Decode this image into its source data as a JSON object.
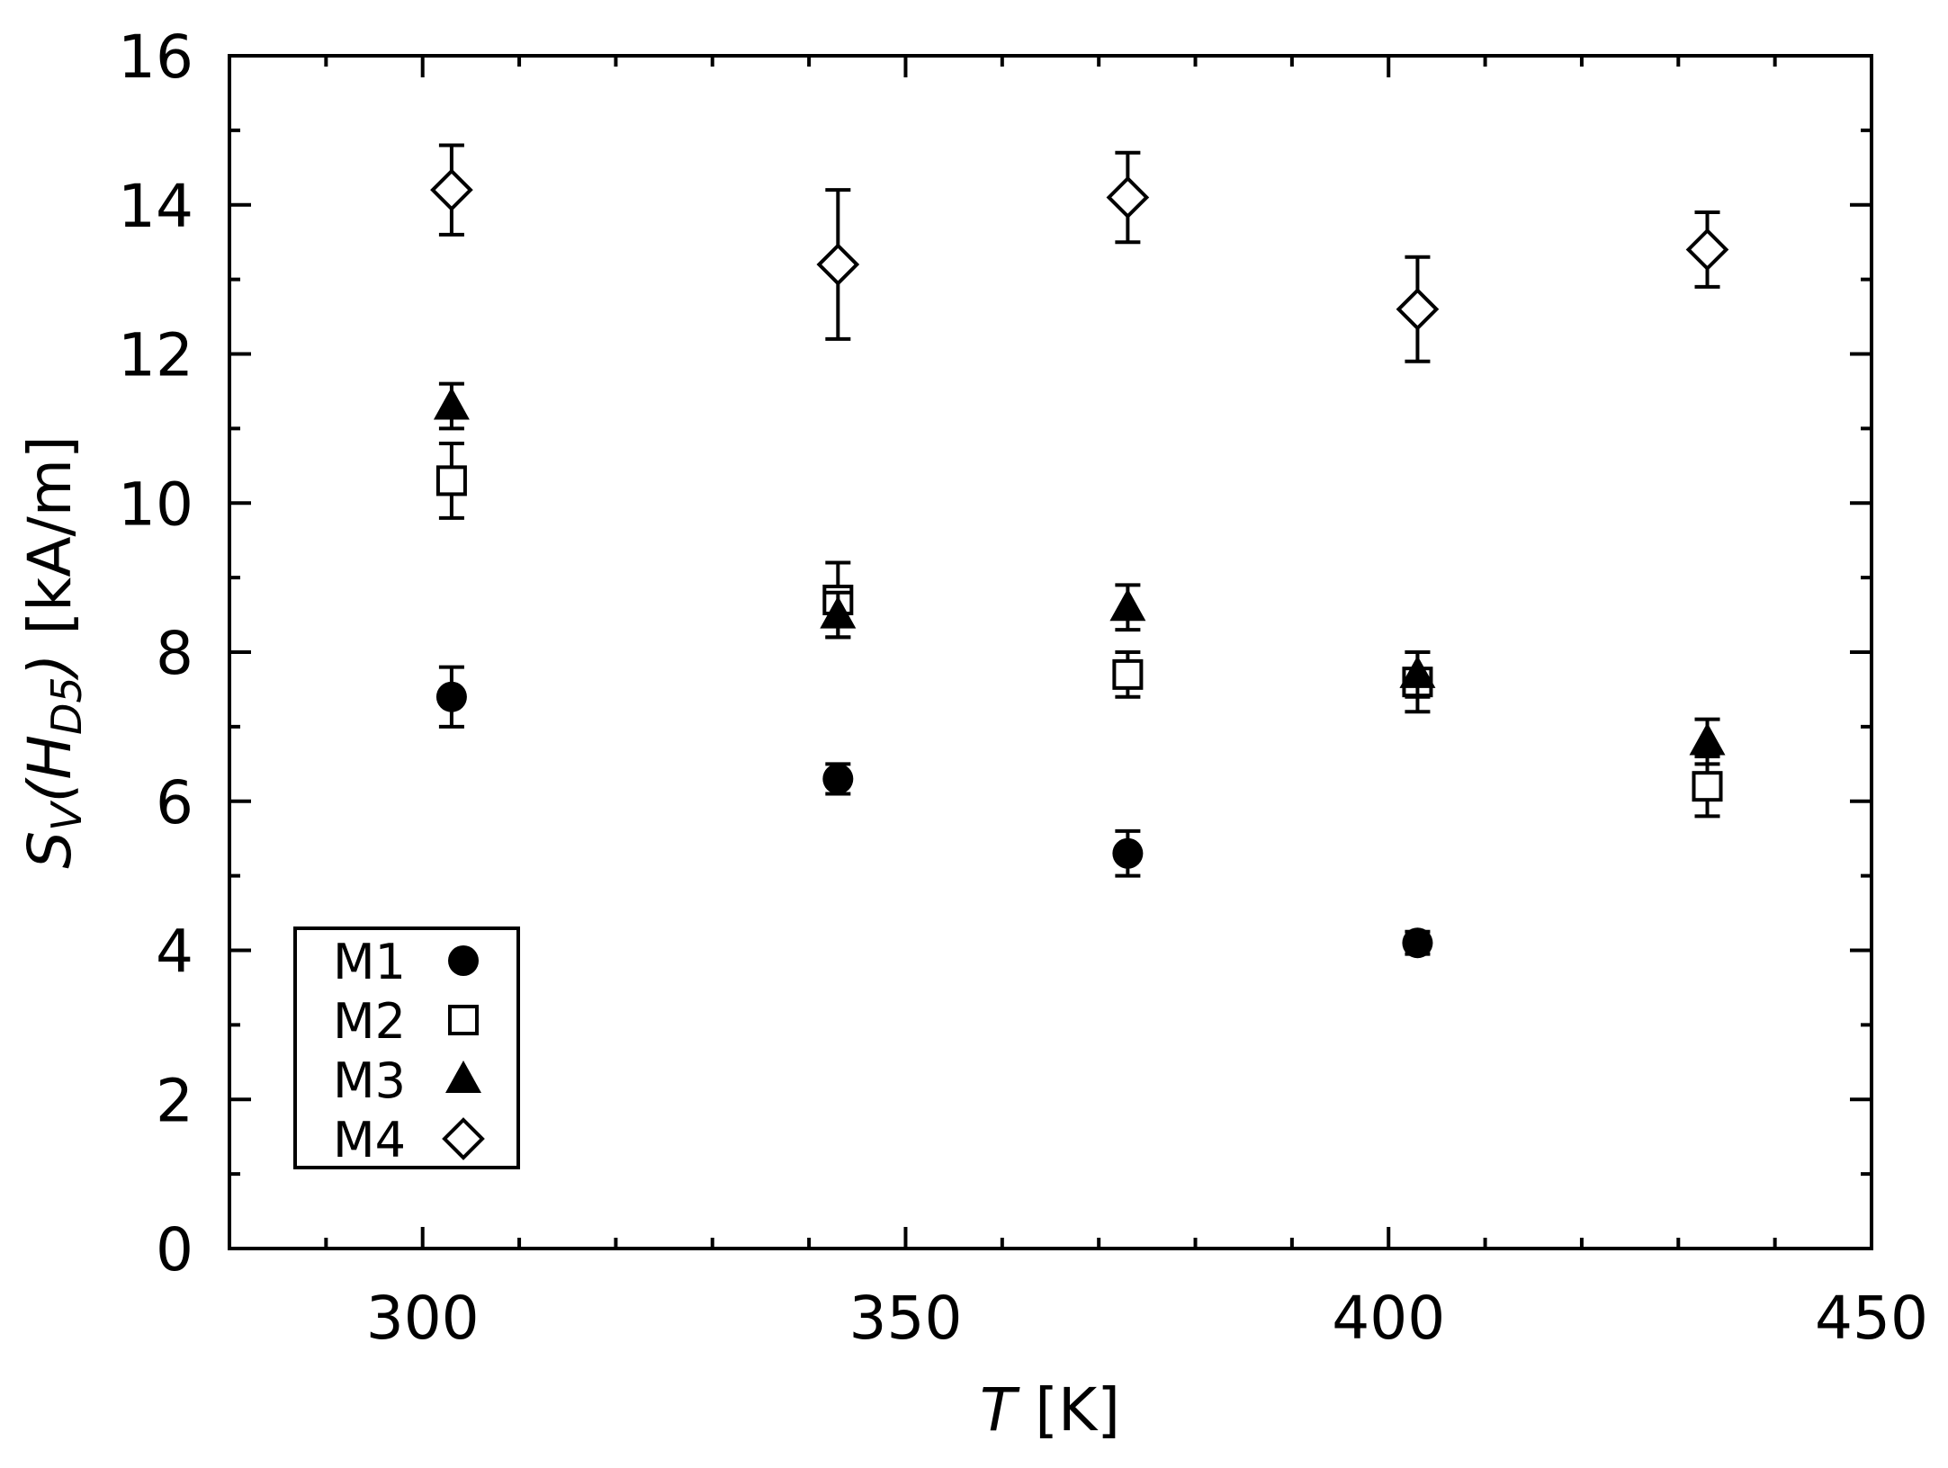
{
  "chart_data": {
    "type": "scatter",
    "xlabel": {
      "symbol": "T",
      "unit": " [K]"
    },
    "ylabel": {
      "prefix": "S",
      "sub1": "V",
      "mid": "(H",
      "sub2": "D5",
      "suffix": ")",
      "unit": " [kA/m]"
    },
    "xlim": [
      280,
      450
    ],
    "ylim": [
      0,
      16
    ],
    "x_ticks": [
      300,
      350,
      400,
      450
    ],
    "x_tick_labels": [
      "300",
      "350",
      "400",
      "450"
    ],
    "x_minor_step": 10,
    "y_ticks": [
      0,
      2,
      4,
      6,
      8,
      10,
      12,
      14,
      16
    ],
    "y_tick_labels": [
      "0",
      "2",
      "4",
      "6",
      "8",
      "10",
      "12",
      "14",
      "16"
    ],
    "y_minor_step": 1,
    "grid": false,
    "legend_position": "bottom-left",
    "series": [
      {
        "name": "M1",
        "marker": "filled-circle",
        "x": [
          303,
          343,
          373,
          403
        ],
        "y": [
          7.4,
          6.3,
          5.3,
          4.1
        ],
        "err": [
          0.4,
          0.2,
          0.3,
          0.15
        ]
      },
      {
        "name": "M2",
        "marker": "open-square",
        "x": [
          303,
          343,
          373,
          403,
          433
        ],
        "y": [
          10.3,
          8.7,
          7.7,
          7.6,
          6.2
        ],
        "err": [
          0.5,
          0.5,
          0.3,
          0.4,
          0.4
        ]
      },
      {
        "name": "M3",
        "marker": "filled-triangle",
        "x": [
          303,
          343,
          373,
          403,
          433
        ],
        "y": [
          11.3,
          8.5,
          8.6,
          7.7,
          6.8
        ],
        "err": [
          0.3,
          0.3,
          0.3,
          0.3,
          0.3
        ]
      },
      {
        "name": "M4",
        "marker": "open-diamond",
        "x": [
          303,
          343,
          373,
          403,
          433
        ],
        "y": [
          14.2,
          13.2,
          14.1,
          12.6,
          13.4
        ],
        "err": [
          0.6,
          1.0,
          0.6,
          0.7,
          0.5
        ]
      }
    ]
  }
}
